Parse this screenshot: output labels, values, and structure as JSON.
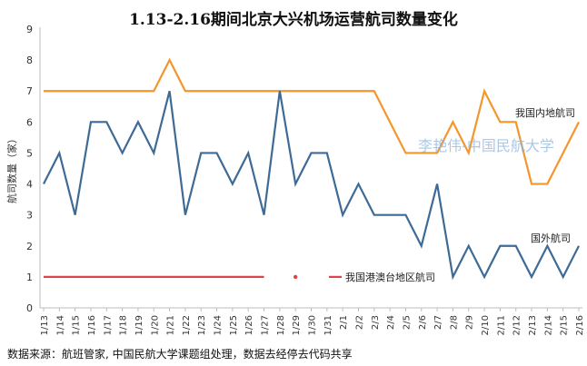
{
  "chart_data": {
    "type": "line",
    "title": "1.13-2.16期间北京大兴机场运营航司数量变化",
    "ylabel": "航司数量（家）",
    "xlabel": "",
    "ylim": [
      0,
      9
    ],
    "yticks": [
      "0",
      "1",
      "2",
      "3",
      "4",
      "5",
      "6",
      "7",
      "8",
      "9"
    ],
    "grid": false,
    "categories": [
      "1/13",
      "1/14",
      "1/15",
      "1/16",
      "1/17",
      "1/18",
      "1/19",
      "1/20",
      "1/21",
      "1/22",
      "1/23",
      "1/24",
      "1/25",
      "1/26",
      "1/27",
      "1/28",
      "1/29",
      "1/30",
      "1/31",
      "2/1",
      "2/2",
      "2/3",
      "2/4",
      "2/5",
      "2/6",
      "2/7",
      "2/8",
      "2/9",
      "2/10",
      "2/11",
      "2/12",
      "2/13",
      "2/14",
      "2/15",
      "2/16"
    ],
    "series": [
      {
        "name": "我国内地航司",
        "color": "#f4962b",
        "values": [
          7,
          7,
          7,
          7,
          7,
          7,
          7,
          7,
          8,
          7,
          7,
          7,
          7,
          7,
          7,
          7,
          7,
          7,
          7,
          7,
          7,
          7,
          6,
          5,
          5,
          5,
          6,
          5,
          7,
          6,
          6,
          4,
          4,
          5,
          6
        ]
      },
      {
        "name": "国外航司",
        "color": "#3d6b96",
        "values": [
          4,
          5,
          3,
          6,
          6,
          5,
          6,
          5,
          7,
          3,
          5,
          5,
          4,
          5,
          3,
          7,
          4,
          5,
          5,
          3,
          4,
          3,
          3,
          3,
          2,
          4,
          1,
          2,
          1,
          2,
          2,
          1,
          2,
          1,
          2
        ]
      },
      {
        "name": "我国港澳台地区航司",
        "color": "#e0434a",
        "values": [
          1,
          1,
          1,
          1,
          1,
          1,
          1,
          1,
          1,
          1,
          1,
          1,
          1,
          1,
          1,
          null,
          1,
          null,
          null,
          null,
          null,
          null,
          null,
          null,
          null,
          null,
          null,
          null,
          null,
          null,
          null,
          null,
          null,
          null,
          null
        ]
      }
    ],
    "watermark": "李艳伟-中国民航大学",
    "source": "数据来源：航班管家, 中国民航大学课题组处理，数据去经停去代码共享"
  }
}
